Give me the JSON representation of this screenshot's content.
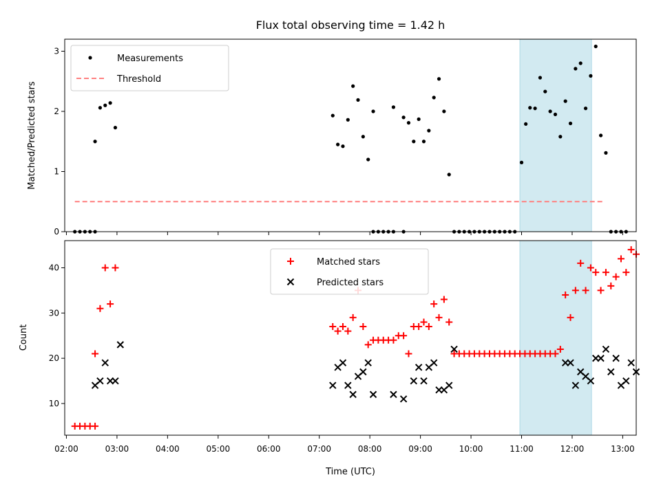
{
  "chart_data": [
    {
      "type": "scatter",
      "title": "Flux total observing time = 1.42 h",
      "ylabel": "Matched/Predicted stars",
      "xlabel": "",
      "ylim": [
        0,
        3.2
      ],
      "yticks": [
        0,
        1,
        2,
        3
      ],
      "highlight_band": {
        "start": "10:58",
        "end": "12:23",
        "color": "#add8e6"
      },
      "legend": {
        "placement": "upper-left",
        "entries": [
          "Measurements",
          "Threshold"
        ]
      },
      "series": [
        {
          "name": "Measurements",
          "marker": "dot",
          "color": "#000000",
          "points": [
            [
              "02:10",
              0
            ],
            [
              "02:16",
              0
            ],
            [
              "02:22",
              0
            ],
            [
              "02:28",
              0
            ],
            [
              "02:34",
              0
            ],
            [
              "02:34",
              1.5
            ],
            [
              "02:40",
              2.06
            ],
            [
              "02:46",
              2.1
            ],
            [
              "02:52",
              2.14
            ],
            [
              "02:58",
              1.73
            ],
            [
              "07:16",
              1.93
            ],
            [
              "07:22",
              1.45
            ],
            [
              "07:28",
              1.42
            ],
            [
              "07:34",
              1.86
            ],
            [
              "07:40",
              2.42
            ],
            [
              "07:46",
              2.19
            ],
            [
              "07:52",
              1.58
            ],
            [
              "07:58",
              1.2
            ],
            [
              "08:04",
              2.0
            ],
            [
              "08:04",
              0
            ],
            [
              "08:10",
              0
            ],
            [
              "08:16",
              0
            ],
            [
              "08:22",
              0
            ],
            [
              "08:28",
              0
            ],
            [
              "08:40",
              0
            ],
            [
              "08:28",
              2.07
            ],
            [
              "08:40",
              1.9
            ],
            [
              "08:46",
              1.81
            ],
            [
              "08:52",
              1.5
            ],
            [
              "08:58",
              1.87
            ],
            [
              "09:04",
              1.5
            ],
            [
              "09:10",
              1.68
            ],
            [
              "09:16",
              2.23
            ],
            [
              "09:22",
              2.54
            ],
            [
              "09:28",
              2.0
            ],
            [
              "09:34",
              0.95
            ],
            [
              "09:40",
              0
            ],
            [
              "09:46",
              0
            ],
            [
              "09:52",
              0
            ],
            [
              "09:58",
              0
            ],
            [
              "10:04",
              0
            ],
            [
              "10:10",
              0
            ],
            [
              "10:16",
              0
            ],
            [
              "10:22",
              0
            ],
            [
              "10:28",
              0
            ],
            [
              "10:34",
              0
            ],
            [
              "10:40",
              0
            ],
            [
              "10:46",
              0
            ],
            [
              "10:52",
              0
            ],
            [
              "11:00",
              1.15
            ],
            [
              "11:05",
              1.79
            ],
            [
              "11:10",
              2.06
            ],
            [
              "11:16",
              2.05
            ],
            [
              "11:22",
              2.56
            ],
            [
              "11:28",
              2.33
            ],
            [
              "11:34",
              2.0
            ],
            [
              "11:40",
              1.95
            ],
            [
              "11:46",
              1.58
            ],
            [
              "11:52",
              2.17
            ],
            [
              "11:58",
              1.8
            ],
            [
              "12:04",
              2.71
            ],
            [
              "12:10",
              2.8
            ],
            [
              "12:16",
              2.05
            ],
            [
              "12:22",
              2.59
            ],
            [
              "12:28",
              3.08
            ],
            [
              "12:34",
              1.6
            ],
            [
              "12:40",
              1.31
            ],
            [
              "12:46",
              0
            ],
            [
              "12:52",
              0
            ],
            [
              "12:58",
              0
            ],
            [
              "13:04",
              0
            ]
          ]
        },
        {
          "name": "Threshold",
          "style": "dashed",
          "color": "#ff7f7f",
          "x": [
            "02:10",
            "12:38"
          ],
          "values": [
            0.5,
            0.5
          ]
        }
      ]
    },
    {
      "type": "scatter",
      "title": "",
      "xlabel": "Time (UTC)",
      "ylabel": "Count",
      "ylim": [
        3,
        46
      ],
      "yticks": [
        10,
        20,
        30,
        40
      ],
      "xlim": [
        "01:58",
        "13:16"
      ],
      "xticks": [
        "02:00",
        "03:00",
        "04:00",
        "05:00",
        "06:00",
        "07:00",
        "08:00",
        "09:00",
        "10:00",
        "11:00",
        "12:00",
        "13:00"
      ],
      "highlight_band": {
        "start": "10:58",
        "end": "12:23",
        "color": "#add8e6"
      },
      "legend": {
        "placement": "upper-center",
        "entries": [
          "Matched stars",
          "Predicted stars"
        ]
      },
      "series": [
        {
          "name": "Matched stars",
          "marker": "plus",
          "color": "#ff0000",
          "points": [
            [
              "02:10",
              5
            ],
            [
              "02:16",
              5
            ],
            [
              "02:22",
              5
            ],
            [
              "02:28",
              5
            ],
            [
              "02:34",
              5
            ],
            [
              "02:34",
              21
            ],
            [
              "02:40",
              31
            ],
            [
              "02:46",
              40
            ],
            [
              "02:52",
              32
            ],
            [
              "02:58",
              40
            ],
            [
              "07:16",
              27
            ],
            [
              "07:22",
              26
            ],
            [
              "07:28",
              27
            ],
            [
              "07:34",
              26
            ],
            [
              "07:40",
              29
            ],
            [
              "07:46",
              35
            ],
            [
              "07:52",
              27
            ],
            [
              "07:58",
              23
            ],
            [
              "08:04",
              24
            ],
            [
              "08:10",
              24
            ],
            [
              "08:16",
              24
            ],
            [
              "08:22",
              24
            ],
            [
              "08:28",
              24
            ],
            [
              "08:34",
              25
            ],
            [
              "08:40",
              25
            ],
            [
              "08:46",
              21
            ],
            [
              "08:52",
              27
            ],
            [
              "08:58",
              27
            ],
            [
              "09:04",
              28
            ],
            [
              "09:10",
              27
            ],
            [
              "09:16",
              32
            ],
            [
              "09:22",
              29
            ],
            [
              "09:28",
              33
            ],
            [
              "09:34",
              28
            ],
            [
              "09:40",
              21
            ],
            [
              "09:46",
              21
            ],
            [
              "09:52",
              21
            ],
            [
              "09:58",
              21
            ],
            [
              "10:04",
              21
            ],
            [
              "10:10",
              21
            ],
            [
              "10:16",
              21
            ],
            [
              "10:22",
              21
            ],
            [
              "10:28",
              21
            ],
            [
              "10:34",
              21
            ],
            [
              "10:40",
              21
            ],
            [
              "10:46",
              21
            ],
            [
              "10:52",
              21
            ],
            [
              "10:58",
              21
            ],
            [
              "11:04",
              21
            ],
            [
              "11:10",
              21
            ],
            [
              "11:16",
              21
            ],
            [
              "11:22",
              21
            ],
            [
              "11:28",
              21
            ],
            [
              "11:34",
              21
            ],
            [
              "11:40",
              21
            ],
            [
              "11:46",
              22
            ],
            [
              "11:52",
              34
            ],
            [
              "11:58",
              29
            ],
            [
              "12:04",
              35
            ],
            [
              "12:10",
              41
            ],
            [
              "12:16",
              35
            ],
            [
              "12:22",
              40
            ],
            [
              "12:28",
              39
            ],
            [
              "12:34",
              35
            ],
            [
              "12:40",
              39
            ],
            [
              "12:46",
              36
            ],
            [
              "12:52",
              38
            ],
            [
              "12:58",
              42
            ],
            [
              "13:04",
              39
            ],
            [
              "13:10",
              44
            ],
            [
              "13:16",
              43
            ]
          ]
        },
        {
          "name": "Predicted stars",
          "marker": "x",
          "color": "#000000",
          "points": [
            [
              "02:34",
              14
            ],
            [
              "02:40",
              15
            ],
            [
              "02:46",
              19
            ],
            [
              "02:52",
              15
            ],
            [
              "02:58",
              15
            ],
            [
              "03:04",
              23
            ],
            [
              "07:16",
              14
            ],
            [
              "07:22",
              18
            ],
            [
              "07:28",
              19
            ],
            [
              "07:34",
              14
            ],
            [
              "07:40",
              12
            ],
            [
              "07:46",
              16
            ],
            [
              "07:52",
              17
            ],
            [
              "07:58",
              19
            ],
            [
              "08:04",
              12
            ],
            [
              "08:28",
              12
            ],
            [
              "08:40",
              11
            ],
            [
              "08:52",
              15
            ],
            [
              "08:58",
              18
            ],
            [
              "09:04",
              15
            ],
            [
              "09:10",
              18
            ],
            [
              "09:16",
              19
            ],
            [
              "09:22",
              13
            ],
            [
              "09:28",
              13
            ],
            [
              "09:34",
              14
            ],
            [
              "09:40",
              22
            ],
            [
              "11:52",
              19
            ],
            [
              "11:58",
              19
            ],
            [
              "12:04",
              14
            ],
            [
              "12:10",
              17
            ],
            [
              "12:16",
              16
            ],
            [
              "12:22",
              15
            ],
            [
              "12:28",
              20
            ],
            [
              "12:34",
              20
            ],
            [
              "12:40",
              22
            ],
            [
              "12:46",
              17
            ],
            [
              "12:52",
              20
            ],
            [
              "12:58",
              14
            ],
            [
              "13:04",
              15
            ],
            [
              "13:10",
              19
            ],
            [
              "13:16",
              17
            ]
          ]
        }
      ]
    }
  ]
}
